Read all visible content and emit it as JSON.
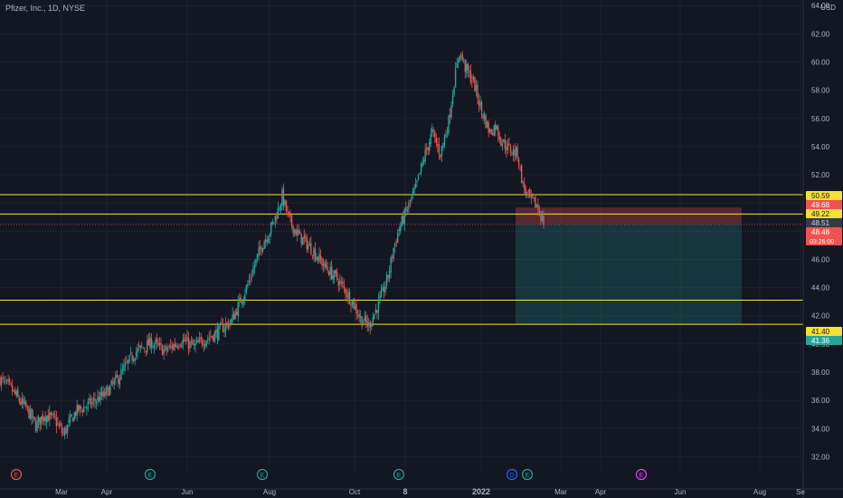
{
  "header": {
    "symbol_line": "Pfizer, Inc., 1D, NYSE",
    "currency": "USD"
  },
  "colors": {
    "background": "#131722",
    "grid": "#1e222d",
    "up": "#26a69a",
    "down": "#ef5350",
    "level_line": "#f7e035",
    "axis_text": "#b2b5be",
    "stop_zone": "rgba(239,83,80,0.30)",
    "target_zone": "rgba(38,166,154,0.22)"
  },
  "chart_data": {
    "type": "candlestick",
    "y_axis": {
      "min": 31,
      "max": 64.4,
      "ticks": [
        "64.00",
        "62.00",
        "60.00",
        "58.00",
        "56.00",
        "54.00",
        "52.00",
        "50.00",
        "48.00",
        "46.00",
        "44.00",
        "42.00",
        "40.00",
        "38.00",
        "36.00",
        "34.00",
        "32.00"
      ]
    },
    "x_axis": {
      "ticks": [
        "Mar",
        "Apr",
        "Jun",
        "Aug",
        "Oct",
        "8",
        "2022",
        "Mar",
        "Apr",
        "Jun",
        "Aug",
        "Se"
      ]
    },
    "horizontal_levels": [
      50.59,
      49.22,
      43.11,
      41.4
    ],
    "price_labels": [
      {
        "value": 50.59,
        "text": "50.59",
        "kind": "level"
      },
      {
        "value": 49.68,
        "text": "49.68",
        "kind": "stop"
      },
      {
        "value": 49.22,
        "text": "49.22",
        "kind": "level"
      },
      {
        "value": 48.51,
        "text": "48.51",
        "kind": "entry"
      },
      {
        "value": 48.48,
        "text": "48.48",
        "kind": "last",
        "sub": "03:26:00"
      },
      {
        "value": 41.4,
        "text": "41.40",
        "kind": "level"
      },
      {
        "value": 41.36,
        "text": "41.36",
        "kind": "target"
      }
    ],
    "position": {
      "entry": 48.51,
      "stop": 49.68,
      "target": 41.36
    },
    "anchors": [
      [
        0,
        37.5
      ],
      [
        8,
        36.8
      ],
      [
        14,
        36.0
      ],
      [
        20,
        35.3
      ],
      [
        26,
        34.2
      ],
      [
        32,
        35.0
      ],
      [
        40,
        34.6
      ],
      [
        46,
        33.6
      ],
      [
        55,
        35.2
      ],
      [
        66,
        35.8
      ],
      [
        76,
        36.4
      ],
      [
        86,
        37.6
      ],
      [
        98,
        39.4
      ],
      [
        110,
        40.1
      ],
      [
        120,
        39.5
      ],
      [
        132,
        40.3
      ],
      [
        141,
        39.8
      ],
      [
        150,
        40.4
      ],
      [
        158,
        40.8
      ],
      [
        162,
        41.2
      ],
      [
        168,
        41.6
      ],
      [
        180,
        44.2
      ],
      [
        190,
        47.0
      ],
      [
        196,
        48.0
      ],
      [
        202,
        49.5
      ],
      [
        205,
        50.5
      ],
      [
        210,
        48.8
      ],
      [
        216,
        47.8
      ],
      [
        226,
        46.8
      ],
      [
        236,
        45.5
      ],
      [
        246,
        44.5
      ],
      [
        256,
        43.0
      ],
      [
        262,
        41.8
      ],
      [
        268,
        41.3
      ],
      [
        274,
        42.6
      ],
      [
        278,
        43.6
      ],
      [
        282,
        44.8
      ],
      [
        286,
        46.8
      ],
      [
        290,
        48.2
      ],
      [
        296,
        49.6
      ],
      [
        302,
        51.0
      ],
      [
        308,
        53.2
      ],
      [
        314,
        55.0
      ],
      [
        320,
        53.5
      ],
      [
        326,
        55.8
      ],
      [
        330,
        58.6
      ],
      [
        334,
        60.8
      ],
      [
        338,
        59.6
      ],
      [
        344,
        58.6
      ],
      [
        350,
        56.5
      ],
      [
        356,
        55.0
      ],
      [
        360,
        55.5
      ],
      [
        364,
        54.5
      ],
      [
        370,
        53.8
      ],
      [
        376,
        53.5
      ],
      [
        380,
        51.2
      ],
      [
        384,
        50.4
      ],
      [
        390,
        49.8
      ],
      [
        394,
        48.9
      ],
      [
        395,
        48.48
      ]
    ],
    "events": [
      {
        "x": 18,
        "letter": "E",
        "color": "#ef5350"
      },
      {
        "x": 166,
        "letter": "E",
        "color": "#26a69a"
      },
      {
        "x": 290,
        "letter": "E",
        "color": "#26a69a"
      },
      {
        "x": 441,
        "letter": "E",
        "color": "#26a69a"
      },
      {
        "x": 566,
        "letter": "D",
        "color": "#2962ff"
      },
      {
        "x": 583,
        "letter": "E",
        "color": "#26a69a"
      },
      {
        "x": 709,
        "letter": "E",
        "color": "#e040fb"
      }
    ]
  }
}
